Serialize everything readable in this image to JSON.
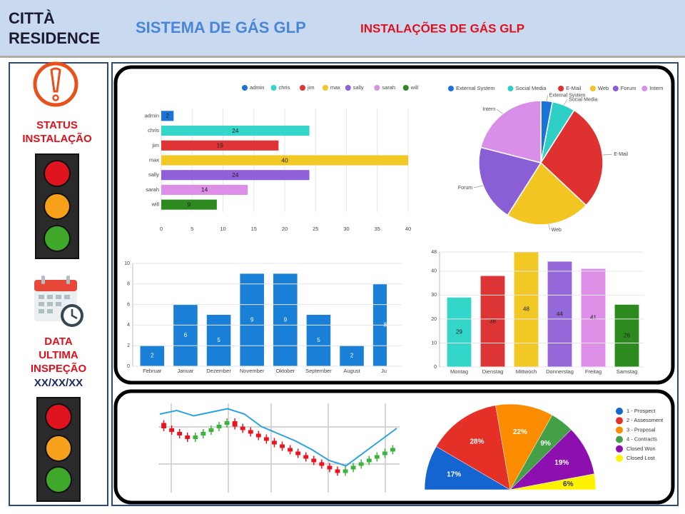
{
  "header": {
    "brand": [
      "CITTÀ",
      "RESIDENCE"
    ],
    "system": "SISTEMA DE GÁS GLP",
    "section": "INSTALAÇÕES DE GÁS GLP"
  },
  "sidebar": {
    "status": [
      "STATUS",
      "INSTALAÇÃO"
    ],
    "inspection": [
      "DATA",
      "ULTIMA",
      "INSPEÇÃO"
    ],
    "date": "XX/XX/XX"
  },
  "chart_data": [
    {
      "type": "bar",
      "orientation": "horizontal",
      "legend": true,
      "grid": true,
      "categories": [
        "admin",
        "chris",
        "jim",
        "max",
        "sally",
        "sarah",
        "will"
      ],
      "values": [
        2,
        24,
        19,
        40,
        24,
        14,
        9
      ],
      "colors": [
        "#1a73d6",
        "#33d6c8",
        "#dd3535",
        "#f2c824",
        "#9060d8",
        "#dd8ee6",
        "#2d8a1e"
      ],
      "xlim": [
        0,
        40
      ],
      "xticks": [
        0,
        5,
        10,
        15,
        20,
        25,
        30,
        35,
        40
      ]
    },
    {
      "type": "pie",
      "legend": true,
      "categories": [
        "External System",
        "Social Media",
        "E-Mail",
        "Web",
        "Forum",
        "Intern"
      ],
      "values": [
        3,
        6,
        28,
        22,
        20,
        21
      ],
      "colors": [
        "#1a73d6",
        "#2ecfc4",
        "#e03131",
        "#f2c522",
        "#8a5fd6",
        "#d98ee8"
      ]
    },
    {
      "type": "bar",
      "grid": true,
      "categories": [
        "Februar",
        "Januar",
        "Dezember",
        "November",
        "Oktober",
        "September",
        "August",
        "Juli"
      ],
      "values": [
        2,
        6,
        5,
        9,
        9,
        5,
        2,
        8
      ],
      "color": "#1a7fd6",
      "ylim": [
        0,
        10
      ],
      "yticks": [
        0,
        2,
        4,
        6,
        8,
        10
      ]
    },
    {
      "type": "bar",
      "grid": true,
      "categories": [
        "Montag",
        "Dienstag",
        "Mittwoch",
        "Donnerstag",
        "Freitag",
        "Samstag"
      ],
      "values": [
        29,
        38,
        48,
        44,
        41,
        26
      ],
      "colors": [
        "#33d6c8",
        "#dd3535",
        "#f2c824",
        "#9468d8",
        "#dd8ee6",
        "#2d8a1e"
      ],
      "ylim": [
        0,
        48
      ],
      "yticks": [
        0,
        10,
        20,
        30,
        40,
        48
      ]
    },
    {
      "type": "candlestick",
      "ylim": [
        0,
        100
      ],
      "open": [
        78,
        72,
        68,
        64,
        60,
        64,
        68,
        72,
        76,
        80,
        74,
        70,
        66,
        62,
        58,
        54,
        50,
        46,
        42,
        38,
        34,
        30,
        26,
        22,
        26,
        30,
        34,
        38,
        42,
        46
      ],
      "close": [
        72,
        68,
        64,
        60,
        64,
        68,
        72,
        76,
        80,
        74,
        70,
        66,
        62,
        58,
        54,
        50,
        46,
        42,
        38,
        34,
        30,
        26,
        22,
        26,
        30,
        34,
        38,
        42,
        46,
        50
      ],
      "up_color": "#3cb43c",
      "down_color": "#e8141e",
      "line": {
        "color": "#2aa3e0",
        "values": [
          88,
          92,
          86,
          90,
          94,
          88,
          74,
          66,
          58,
          48,
          36,
          30,
          44,
          58,
          72
        ]
      }
    },
    {
      "type": "pie",
      "semicircle": true,
      "legend": true,
      "categories": [
        "1 - Prospect",
        "2 - Assessment",
        "3 - Proposal",
        "4 - Contracts",
        "Closed Won",
        "Closed Lost"
      ],
      "values": [
        17,
        28,
        22,
        9,
        19,
        6
      ],
      "value_labels": [
        "17%",
        "28%",
        "22%",
        "9%",
        "19%",
        "6%"
      ],
      "colors": [
        "#1565d0",
        "#e53027",
        "#fb8c00",
        "#43a047",
        "#8e0fb0",
        "#fff200"
      ]
    }
  ]
}
